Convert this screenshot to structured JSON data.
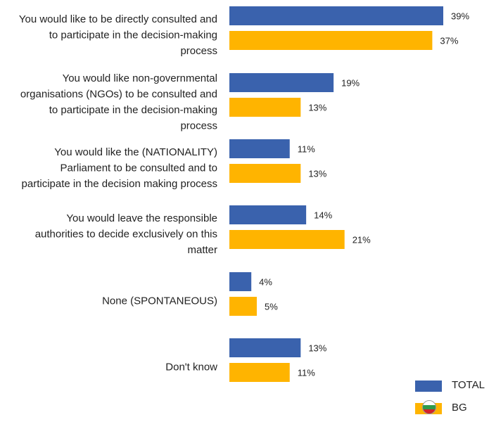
{
  "chart_data": {
    "type": "bar",
    "orientation": "horizontal",
    "unit": "%",
    "categories": [
      [
        "You would like to be directly consulted and",
        "to participate in the decision-making",
        "process"
      ],
      [
        "You would like non-governmental",
        "organisations (NGOs) to be consulted and",
        "to participate in the decision-making",
        "process"
      ],
      [
        "You would like the (NATIONALITY)",
        "Parliament to be consulted and to",
        "participate in the decision making process"
      ],
      [
        "You would leave the responsible",
        "authorities to decide exclusively on this",
        "matter"
      ],
      [
        "None (SPONTANEOUS)"
      ],
      [
        "Don't know"
      ]
    ],
    "series": [
      {
        "name": "TOTAL",
        "color": "#3a62ad",
        "values": [
          39,
          19,
          11,
          14,
          4,
          13
        ],
        "labels": [
          "39%",
          "19%",
          "11%",
          "14%",
          "4%",
          "13%"
        ]
      },
      {
        "name": "BG",
        "color": "#ffb400",
        "values": [
          37,
          13,
          13,
          21,
          5,
          11
        ],
        "labels": [
          "37%",
          "13%",
          "13%",
          "21%",
          "5%",
          "11%"
        ],
        "icon": "bulgaria-flag-icon"
      }
    ],
    "xlim": [
      0,
      39
    ],
    "grid": false,
    "legend_position": "bottom-right"
  },
  "legend": {
    "items": [
      {
        "label": "TOTAL",
        "color": "#3a62ad"
      },
      {
        "label": "BG",
        "color": "#ffb400",
        "icon": "bulgaria-flag-icon"
      }
    ]
  }
}
